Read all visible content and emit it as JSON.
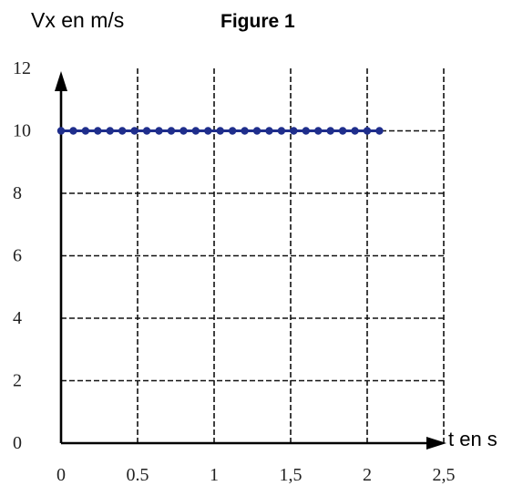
{
  "chart_data": {
    "type": "line",
    "title": "Figure 1",
    "ylabel": "Vx en m/s",
    "xlabel": "t en s",
    "xlim": [
      0,
      2.5
    ],
    "ylim": [
      0,
      12
    ],
    "x_ticks": [
      "0",
      "0.5",
      "1",
      "1,5",
      "2",
      "2,5"
    ],
    "y_ticks": [
      "0",
      "2",
      "4",
      "6",
      "8",
      "10",
      "12"
    ],
    "grid": true,
    "series": [
      {
        "x": [
          0,
          0.08,
          0.16,
          0.24,
          0.32,
          0.4,
          0.48,
          0.56,
          0.64,
          0.72,
          0.8,
          0.88,
          0.96,
          1.04,
          1.12,
          1.2,
          1.28,
          1.36,
          1.44,
          1.52,
          1.6,
          1.68,
          1.76,
          1.84,
          1.92,
          2.0,
          2.08
        ],
        "values": [
          10,
          10,
          10,
          10,
          10,
          10,
          10,
          10,
          10,
          10,
          10,
          10,
          10,
          10,
          10,
          10,
          10,
          10,
          10,
          10,
          10,
          10,
          10,
          10,
          10,
          10,
          10
        ],
        "color": "#1f2e8c"
      }
    ]
  }
}
